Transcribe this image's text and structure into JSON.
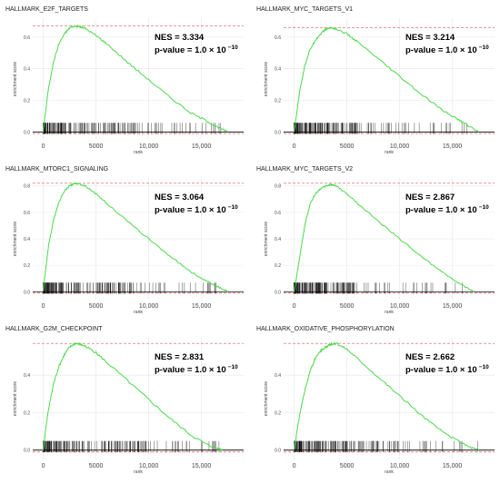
{
  "chart_data": [
    {
      "type": "line",
      "title": "HALLMARK_E2F_TARGETS",
      "xlabel": "rank",
      "ylabel": "enrichment score",
      "x_ticks": [
        0,
        5000,
        10000,
        15000
      ],
      "x_tick_labels": [
        "0",
        "5000",
        "10,000",
        "15,000"
      ],
      "y_ticks": [
        0.0,
        0.2,
        0.4,
        0.6
      ],
      "y_tick_labels": [
        "0.0",
        "0.2",
        "0.4",
        "0.6"
      ],
      "xlim": [
        -1000,
        19000
      ],
      "ylim": [
        -0.05,
        0.72
      ],
      "max_es": 0.67,
      "min_es": -0.01,
      "nes_text": "NES = 3.334",
      "pvalue_text": "p-value = 1.0 × 10",
      "pvalue_exp": "−10",
      "series": [
        {
          "x": [
            0,
            200,
            500,
            1000,
            1500,
            2000,
            2500,
            3000,
            3500,
            4000,
            5000,
            6000,
            8000,
            10000,
            12000,
            14000,
            15500,
            16500,
            17500
          ],
          "y": [
            0,
            0.12,
            0.28,
            0.45,
            0.56,
            0.62,
            0.66,
            0.67,
            0.665,
            0.655,
            0.61,
            0.56,
            0.44,
            0.33,
            0.22,
            0.12,
            0.07,
            0.03,
            0
          ]
        }
      ],
      "hits_dense_max": 9000,
      "hits_sparse_max": 17000
    },
    {
      "type": "line",
      "title": "HALLMARK_MYC_TARGETS_V1",
      "xlabel": "rank",
      "ylabel": "enrichment score",
      "x_ticks": [
        0,
        5000,
        10000,
        15000
      ],
      "x_tick_labels": [
        "0",
        "5000",
        "10,000",
        "15,000"
      ],
      "y_ticks": [
        0.0,
        0.2,
        0.4,
        0.6
      ],
      "y_tick_labels": [
        "0.0",
        "0.2",
        "0.4",
        "0.6"
      ],
      "xlim": [
        -1000,
        19000
      ],
      "ylim": [
        -0.05,
        0.72
      ],
      "max_es": 0.66,
      "min_es": -0.01,
      "nes_text": "NES = 3.214",
      "pvalue_text": "p-value = 1.0 × 10",
      "pvalue_exp": "−10",
      "series": [
        {
          "x": [
            0,
            200,
            500,
            1000,
            1500,
            2000,
            2500,
            3000,
            3500,
            4000,
            5000,
            6000,
            8000,
            10000,
            12000,
            14000,
            15500,
            16500,
            17500
          ],
          "y": [
            0,
            0.1,
            0.25,
            0.42,
            0.52,
            0.58,
            0.62,
            0.65,
            0.66,
            0.65,
            0.62,
            0.57,
            0.46,
            0.35,
            0.24,
            0.14,
            0.08,
            0.04,
            0
          ]
        }
      ],
      "hits_dense_max": 8000,
      "hits_sparse_max": 16500
    },
    {
      "type": "line",
      "title": "HALLMARK_MTORC1_SIGNALING",
      "xlabel": "rank",
      "ylabel": "enrichment score",
      "x_ticks": [
        0,
        5000,
        10000,
        15000
      ],
      "x_tick_labels": [
        "0",
        "5000",
        "10,000",
        "15,000"
      ],
      "y_ticks": [
        0.0,
        0.2,
        0.4,
        0.6,
        0.8
      ],
      "y_tick_labels": [
        "0.0",
        "0.2",
        "0.4",
        "0.6",
        "0.8"
      ],
      "xlim": [
        -1000,
        19000
      ],
      "ylim": [
        -0.06,
        0.86
      ],
      "max_es": 0.82,
      "min_es": -0.01,
      "nes_text": "NES = 3.064",
      "pvalue_text": "p-value = 1.0 × 10",
      "pvalue_exp": "−10",
      "series": [
        {
          "x": [
            0,
            200,
            500,
            1000,
            1500,
            2000,
            2500,
            3000,
            3500,
            4000,
            5000,
            6000,
            8000,
            10000,
            12000,
            14000,
            15500,
            16500,
            17500
          ],
          "y": [
            0,
            0.15,
            0.35,
            0.55,
            0.68,
            0.76,
            0.8,
            0.82,
            0.815,
            0.8,
            0.74,
            0.67,
            0.53,
            0.4,
            0.27,
            0.15,
            0.08,
            0.04,
            0
          ]
        }
      ],
      "hits_dense_max": 9000,
      "hits_sparse_max": 16500
    },
    {
      "type": "line",
      "title": "HALLMARK_MYC_TARGETS_V2",
      "xlabel": "rank",
      "ylabel": "enrichment score",
      "x_ticks": [
        0,
        5000,
        10000,
        15000
      ],
      "x_tick_labels": [
        "0",
        "5000",
        "10,000",
        "15,000"
      ],
      "y_ticks": [
        0.0,
        0.2,
        0.4,
        0.6,
        0.8
      ],
      "y_tick_labels": [
        "0.0",
        "0.2",
        "0.4",
        "0.6",
        "0.8"
      ],
      "xlim": [
        -1000,
        19000
      ],
      "ylim": [
        -0.06,
        0.86
      ],
      "max_es": 0.82,
      "min_es": -0.01,
      "nes_text": "NES = 2.867",
      "pvalue_text": "p-value = 1.0 × 10",
      "pvalue_exp": "−10",
      "series": [
        {
          "x": [
            0,
            200,
            500,
            800,
            1000,
            1500,
            2000,
            2500,
            3000,
            3500,
            4000,
            5000,
            6000,
            8000,
            10000,
            12000,
            14000,
            15500,
            17000
          ],
          "y": [
            0,
            0.1,
            0.25,
            0.4,
            0.5,
            0.66,
            0.74,
            0.78,
            0.8,
            0.81,
            0.8,
            0.74,
            0.67,
            0.53,
            0.4,
            0.27,
            0.15,
            0.07,
            0
          ]
        }
      ],
      "hits_dense_max": 6000,
      "hits_sparse_max": 16500
    },
    {
      "type": "line",
      "title": "HALLMARK_G2M_CHECKPOINT",
      "xlabel": "rank",
      "ylabel": "enrichment score",
      "x_ticks": [
        0,
        5000,
        10000,
        15000
      ],
      "x_tick_labels": [
        "0",
        "5000",
        "10,000",
        "15,000"
      ],
      "y_ticks": [
        0.0,
        0.2,
        0.4
      ],
      "y_tick_labels": [
        "0.0",
        "0.2",
        "0.4"
      ],
      "xlim": [
        -1000,
        19000
      ],
      "ylim": [
        -0.05,
        0.6
      ],
      "max_es": 0.57,
      "min_es": -0.01,
      "nes_text": "NES = 2.831",
      "pvalue_text": "p-value = 1.0 × 10",
      "pvalue_exp": "−10",
      "series": [
        {
          "x": [
            0,
            200,
            500,
            1000,
            1500,
            2000,
            2500,
            3000,
            3500,
            4000,
            5000,
            6000,
            8000,
            10000,
            12000,
            14000,
            15500,
            16500,
            17000
          ],
          "y": [
            0,
            0.1,
            0.22,
            0.36,
            0.45,
            0.51,
            0.55,
            0.57,
            0.565,
            0.555,
            0.52,
            0.47,
            0.37,
            0.27,
            0.17,
            0.08,
            0.03,
            0.01,
            0
          ]
        }
      ],
      "hits_dense_max": 10000,
      "hits_sparse_max": 17000
    },
    {
      "type": "line",
      "title": "HALLMARK_OXIDATIVE_PHOSPHORYLATION",
      "xlabel": "rank",
      "ylabel": "enrichment score",
      "x_ticks": [
        0,
        5000,
        10000,
        15000
      ],
      "x_tick_labels": [
        "0",
        "5000",
        "10,000",
        "15,000"
      ],
      "y_ticks": [
        0.0,
        0.2,
        0.4
      ],
      "y_tick_labels": [
        "0.0",
        "0.2",
        "0.4"
      ],
      "xlim": [
        -1000,
        19000
      ],
      "ylim": [
        -0.05,
        0.6
      ],
      "max_es": 0.57,
      "min_es": -0.01,
      "nes_text": "NES = 2.662",
      "pvalue_text": "p-value = 1.0 × 10",
      "pvalue_exp": "−10",
      "series": [
        {
          "x": [
            0,
            200,
            500,
            1000,
            1500,
            2000,
            2500,
            3000,
            3500,
            4000,
            5000,
            6000,
            8000,
            10000,
            12000,
            14000,
            15500,
            16500,
            17500
          ],
          "y": [
            0,
            0.08,
            0.18,
            0.32,
            0.42,
            0.49,
            0.53,
            0.55,
            0.565,
            0.57,
            0.54,
            0.49,
            0.39,
            0.29,
            0.19,
            0.1,
            0.05,
            0.02,
            0
          ]
        }
      ],
      "hits_dense_max": 10000,
      "hits_sparse_max": 17500
    }
  ],
  "colors": {
    "curve": "#4cd94c",
    "max_line": "#e05a5a",
    "axis": "#000000",
    "grid": "#e6e6e6",
    "hit": "#000000"
  }
}
